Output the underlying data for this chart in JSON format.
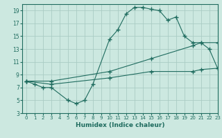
{
  "xlabel": "Humidex (Indice chaleur)",
  "bg_color": "#cce8e0",
  "grid_color": "#aaccc4",
  "line_color": "#1e6b5e",
  "xlim": [
    -0.5,
    23
  ],
  "ylim": [
    3,
    20
  ],
  "xticks": [
    0,
    1,
    2,
    3,
    4,
    5,
    6,
    7,
    8,
    9,
    10,
    11,
    12,
    13,
    14,
    15,
    16,
    17,
    18,
    19,
    20,
    21,
    22,
    23
  ],
  "yticks": [
    3,
    5,
    7,
    9,
    11,
    13,
    15,
    17,
    19
  ],
  "line1_x": [
    0,
    1,
    2,
    3,
    5,
    6,
    7,
    8,
    10,
    11,
    12,
    13,
    14,
    15,
    16,
    17,
    18,
    19,
    20,
    21,
    22,
    23
  ],
  "line1_y": [
    8,
    7.5,
    7,
    7,
    5,
    4.5,
    5,
    7.5,
    14.5,
    16,
    18.5,
    19.5,
    19.5,
    19.2,
    19,
    17.5,
    18,
    15,
    14,
    14,
    13,
    10
  ],
  "line2_x": [
    0,
    3,
    10,
    15,
    20,
    21,
    23
  ],
  "line2_y": [
    8,
    8,
    9.5,
    11.5,
    13.5,
    14,
    14
  ],
  "line3_x": [
    0,
    3,
    10,
    15,
    20,
    21,
    23
  ],
  "line3_y": [
    8,
    7.5,
    8.5,
    9.5,
    9.5,
    9.8,
    10
  ]
}
